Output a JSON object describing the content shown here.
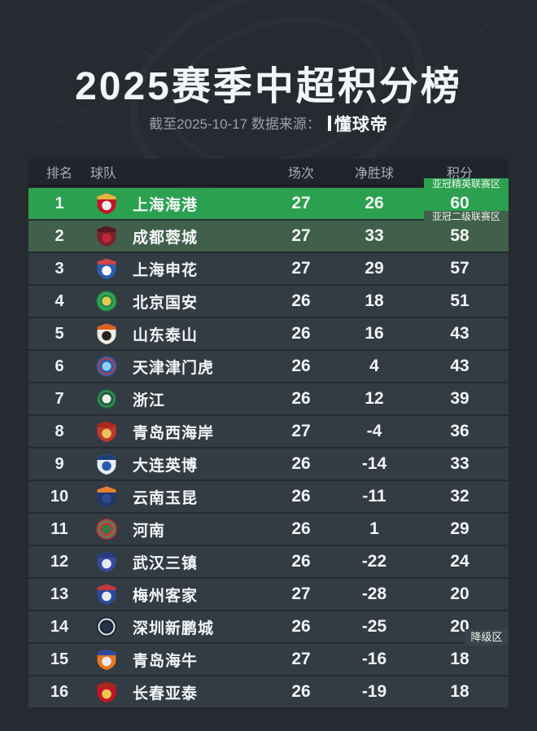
{
  "page": {
    "background": "#262b32"
  },
  "header": {
    "title": "2025赛季中超积分榜",
    "subtitle_prefix": "截至2025-10-17 数据来源：",
    "source": "懂球帝"
  },
  "icons": {
    "team_crest": "team-crest-icon",
    "source_logo_bar": "dongqiudi-logo-bar-icon"
  },
  "chart_data": {
    "type": "table",
    "title": "2025赛季中超积分榜",
    "as_of_date": "2025-10-17",
    "source": "懂球帝",
    "columns": {
      "rank": "排名",
      "team": "球队",
      "matches": "场次",
      "goal_diff": "净胜球",
      "points": "积分"
    },
    "rows": [
      {
        "rank": 1,
        "team": "上海海港",
        "matches": 27,
        "goal_diff": 26,
        "points": 60,
        "highlight": "acl_elite",
        "logo": {
          "shape": "shield",
          "colors": [
            "#c51426",
            "#e9edf2",
            "#e3b63c"
          ]
        }
      },
      {
        "rank": 2,
        "team": "成都蓉城",
        "matches": 27,
        "goal_diff": 33,
        "points": 58,
        "highlight": "acl_two",
        "logo": {
          "shape": "shield",
          "colors": [
            "#7c222c",
            "#c2243a",
            "#571821"
          ]
        }
      },
      {
        "rank": 3,
        "team": "上海申花",
        "matches": 27,
        "goal_diff": 29,
        "points": 57,
        "logo": {
          "shape": "shield",
          "colors": [
            "#2b5cb0",
            "#ffffff",
            "#cf4444"
          ]
        }
      },
      {
        "rank": 4,
        "team": "北京国安",
        "matches": 26,
        "goal_diff": 18,
        "points": 51,
        "logo": {
          "shape": "circle",
          "colors": [
            "#1e8c44",
            "#e9c94e",
            "#3cab5c"
          ]
        }
      },
      {
        "rank": 5,
        "team": "山东泰山",
        "matches": 26,
        "goal_diff": 16,
        "points": 43,
        "logo": {
          "shape": "shield",
          "colors": [
            "#efece4",
            "#25221f",
            "#e06020"
          ]
        }
      },
      {
        "rank": 6,
        "team": "天津津门虎",
        "matches": 26,
        "goal_diff": 4,
        "points": 43,
        "logo": {
          "shape": "circle",
          "colors": [
            "#2a5cb0",
            "#8fd0ec",
            "#c23a3a"
          ]
        }
      },
      {
        "rank": 7,
        "team": "浙江",
        "matches": 26,
        "goal_diff": 12,
        "points": 39,
        "logo": {
          "shape": "circle",
          "colors": [
            "#1e5c38",
            "#e8eee8",
            "#3f8f5f"
          ]
        }
      },
      {
        "rank": 8,
        "team": "青岛西海岸",
        "matches": 27,
        "goal_diff": -4,
        "points": 36,
        "logo": {
          "shape": "shield",
          "colors": [
            "#c0392b",
            "#e8c35e",
            "#a8281c"
          ]
        }
      },
      {
        "rank": 9,
        "team": "大连英博",
        "matches": 26,
        "goal_diff": -14,
        "points": 33,
        "logo": {
          "shape": "shield",
          "colors": [
            "#e8ecf2",
            "#2a5cb0",
            "#1d3f7a"
          ]
        }
      },
      {
        "rank": 10,
        "team": "云南玉昆",
        "matches": 26,
        "goal_diff": -11,
        "points": 32,
        "logo": {
          "shape": "shield",
          "colors": [
            "#20386e",
            "#2e4a8c",
            "#e88030"
          ]
        }
      },
      {
        "rank": 11,
        "team": "河南",
        "matches": 26,
        "goal_diff": 1,
        "points": 29,
        "logo": {
          "shape": "circle",
          "colors": [
            "#c23a3a",
            "#2e7d46",
            "#3f8f5f"
          ]
        }
      },
      {
        "rank": 12,
        "team": "武汉三镇",
        "matches": 26,
        "goal_diff": -22,
        "points": 24,
        "logo": {
          "shape": "shield",
          "colors": [
            "#3a4a9e",
            "#e8ecf2",
            "#2a3a7e"
          ]
        }
      },
      {
        "rank": 13,
        "team": "梅州客家",
        "matches": 27,
        "goal_diff": -28,
        "points": 20,
        "logo": {
          "shape": "shield",
          "colors": [
            "#2a4a9e",
            "#e8ecf2",
            "#c23a3a"
          ]
        }
      },
      {
        "rank": 14,
        "team": "深圳新鹏城",
        "matches": 26,
        "goal_diff": -25,
        "points": 20,
        "logo": {
          "shape": "circle",
          "colors": [
            "#1b2736",
            "#24344d",
            "#dfe5ea"
          ]
        }
      },
      {
        "rank": 15,
        "team": "青岛海牛",
        "matches": 27,
        "goal_diff": -16,
        "points": 18,
        "logo": {
          "shape": "shield",
          "colors": [
            "#e87722",
            "#e8ecf2",
            "#2a4a9e"
          ]
        }
      },
      {
        "rank": 16,
        "team": "长春亚泰",
        "matches": 26,
        "goal_diff": -19,
        "points": 18,
        "logo": {
          "shape": "shield",
          "colors": [
            "#c51426",
            "#e8c94e",
            "#a8281c"
          ]
        }
      }
    ],
    "zones": [
      {
        "label": "亚冠精英联赛区",
        "applies_to_rank": 1,
        "bg": "#2ba14f"
      },
      {
        "label": "亚冠二级联赛区",
        "applies_to_rank": 2,
        "bg": "#40604b"
      },
      {
        "label": "降级区",
        "applies_to_rank": 15,
        "bg": "#3a424b"
      }
    ],
    "row_colors": {
      "default": "#333b43",
      "acl_elite": "#2ba14f",
      "acl_two": "#40604b"
    },
    "layout_hints": {
      "grid": false,
      "zone_labels_position": "right-aligned above target row"
    }
  }
}
